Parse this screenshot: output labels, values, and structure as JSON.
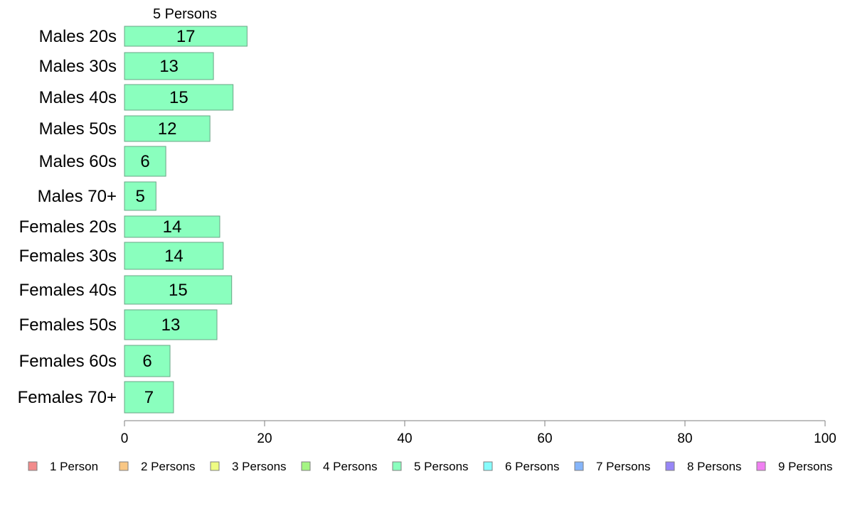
{
  "chart_data": {
    "type": "bar",
    "orientation": "horizontal",
    "title": "",
    "series_title": "5 Persons",
    "categories": [
      "Males 20s",
      "Males 30s",
      "Males 40s",
      "Males 50s",
      "Males 60s",
      "Males 70+",
      "Females 20s",
      "Females 30s",
      "Females 40s",
      "Females 50s",
      "Females 60s",
      "Females 70+"
    ],
    "series": [
      {
        "name": "5 Persons",
        "color": "#8affbe",
        "values": [
          17.5,
          12.7,
          15.5,
          12.2,
          5.9,
          4.5,
          13.6,
          14.1,
          15.3,
          13.2,
          6.5,
          7.0
        ],
        "labels": [
          "17",
          "13",
          "15",
          "12",
          "6",
          "5",
          "14",
          "14",
          "15",
          "13",
          "6",
          "7"
        ]
      }
    ],
    "xlim": [
      0,
      100
    ],
    "xticks": [
      0,
      20,
      40,
      60,
      80,
      100
    ],
    "xlabel": "",
    "ylabel": "",
    "grid": false,
    "legend_position": "bottom",
    "legend": [
      {
        "label": "1 Person",
        "color": "#f28b8b"
      },
      {
        "label": "2 Persons",
        "color": "#f9c784"
      },
      {
        "label": "3 Persons",
        "color": "#eefc83"
      },
      {
        "label": "4 Persons",
        "color": "#a4f583"
      },
      {
        "label": "5 Persons",
        "color": "#8affbe"
      },
      {
        "label": "6 Persons",
        "color": "#86fcfc"
      },
      {
        "label": "7 Persons",
        "color": "#85b5fa"
      },
      {
        "label": "8 Persons",
        "color": "#9786f7"
      },
      {
        "label": "9 Persons",
        "color": "#f080f2"
      }
    ]
  }
}
